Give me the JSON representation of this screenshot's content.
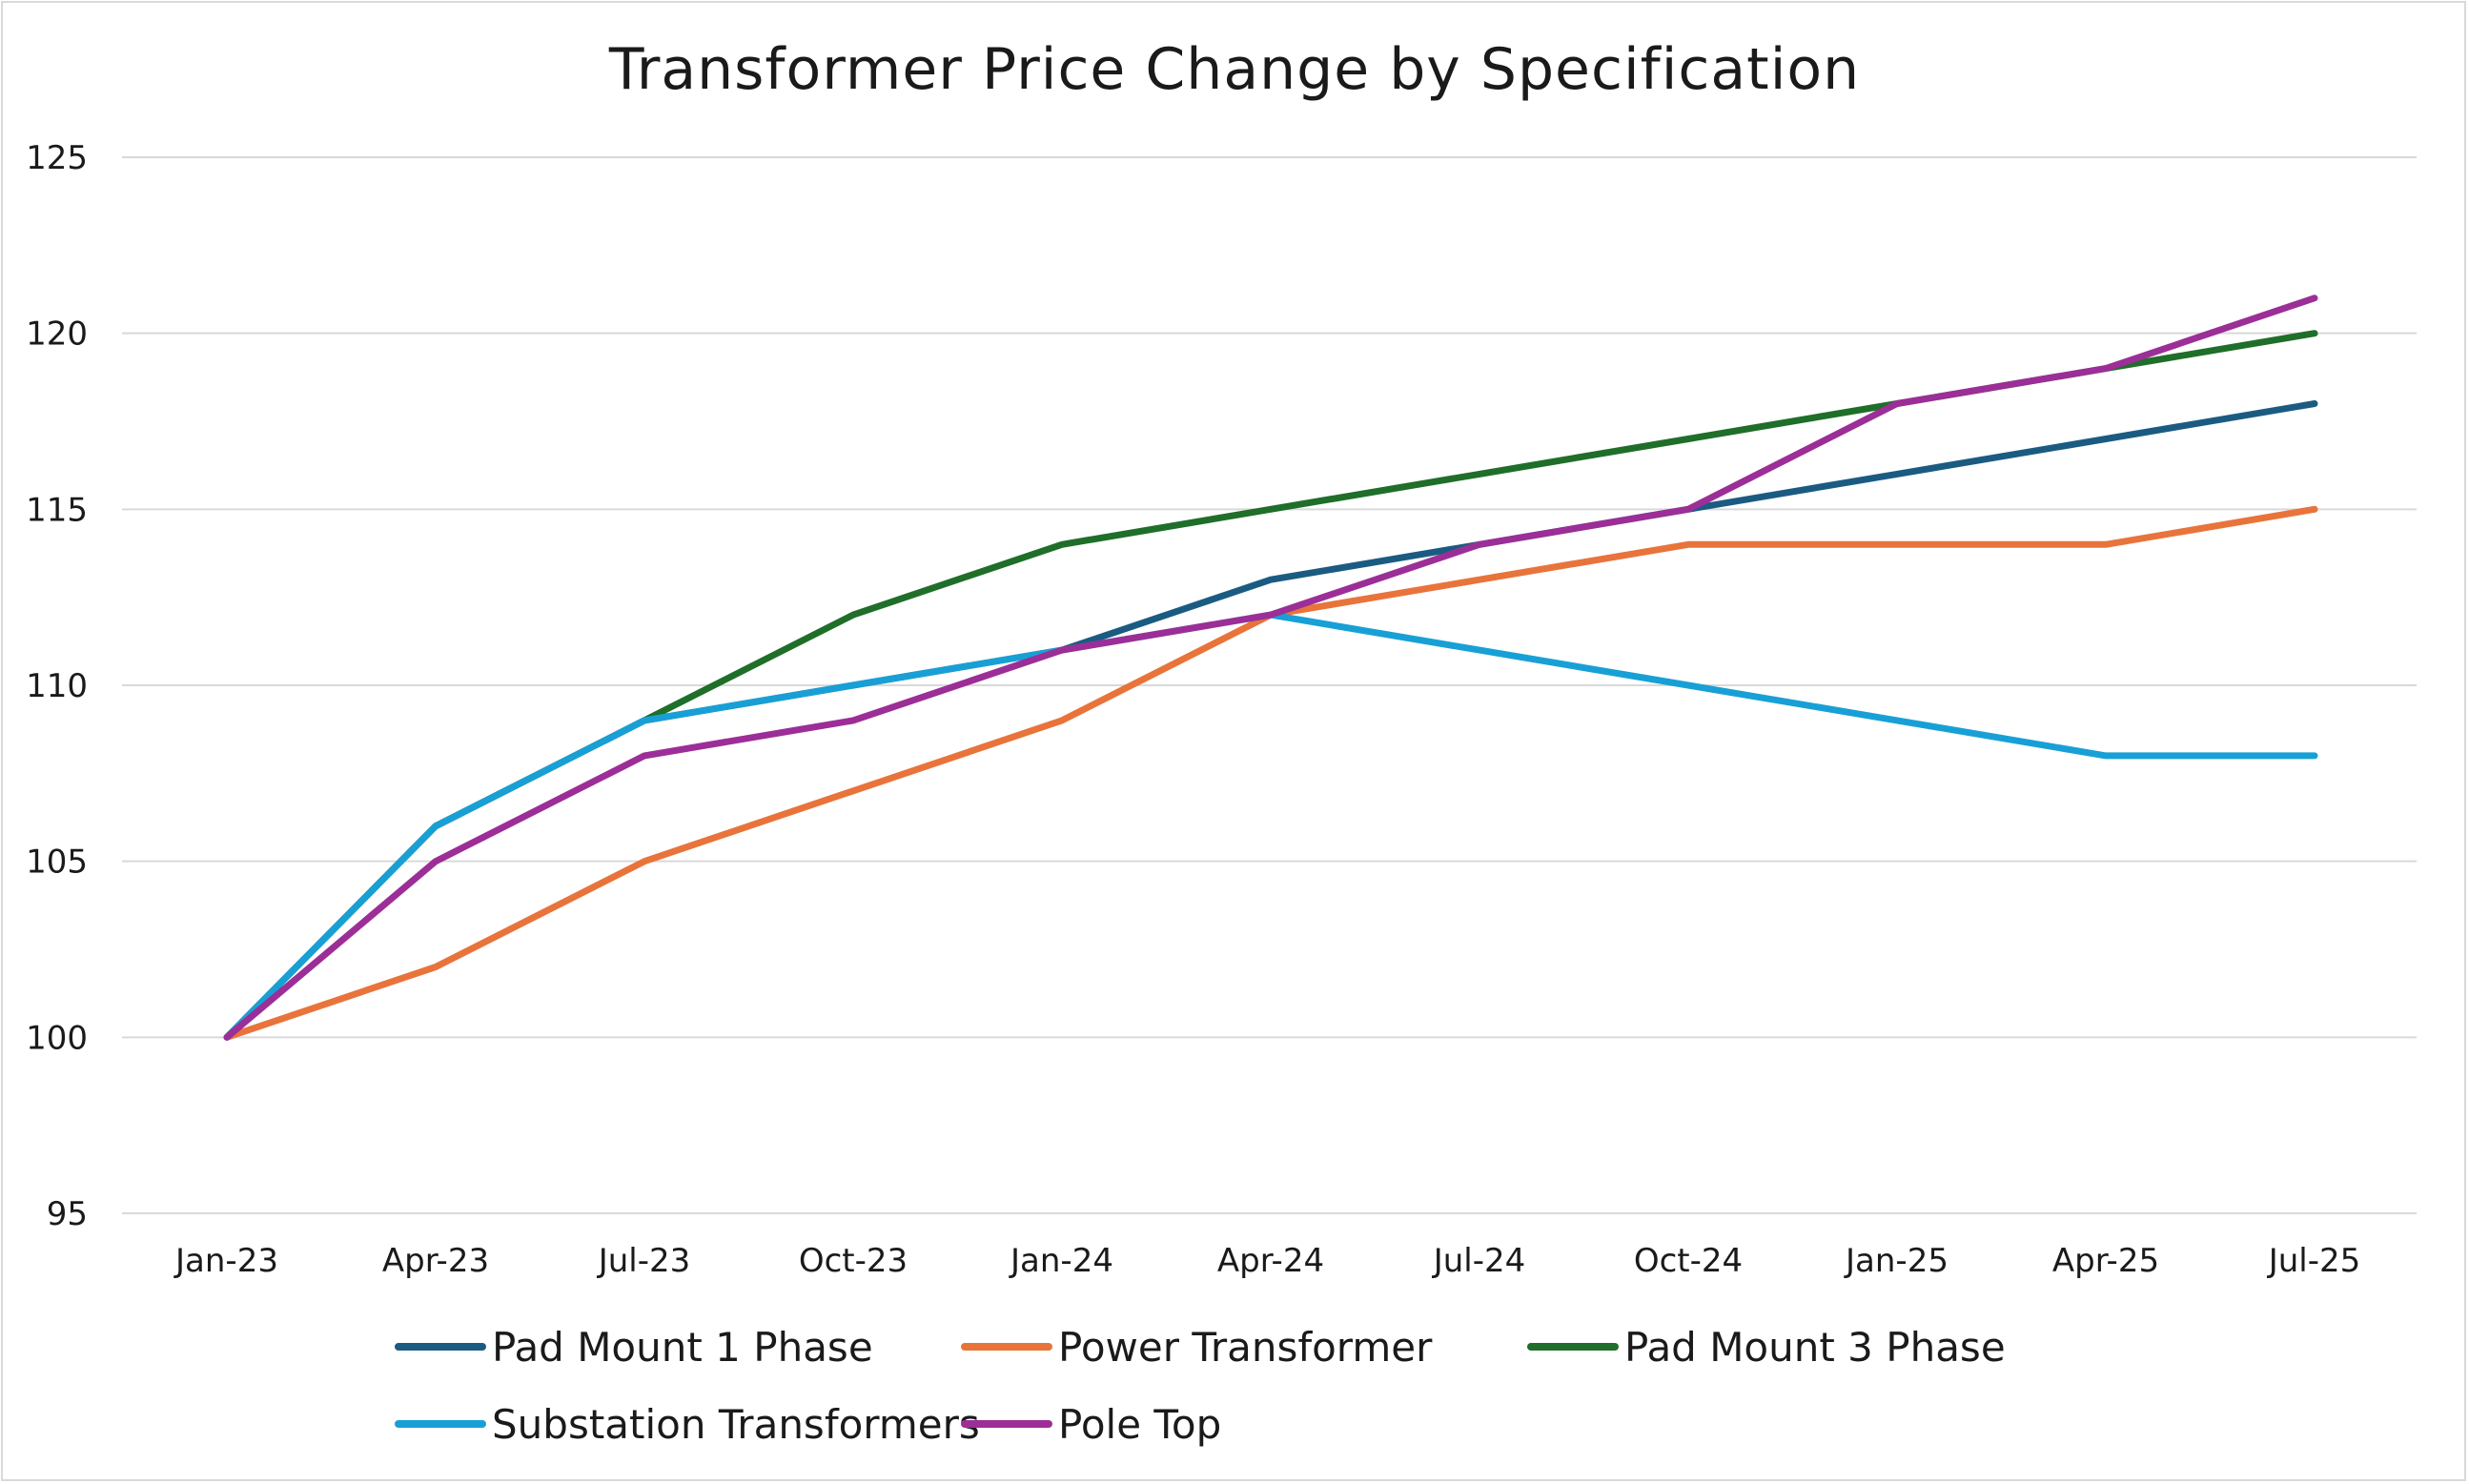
{
  "chart_data": {
    "type": "line",
    "title": "Transformer Price Change by Specification",
    "xlabel": "",
    "ylabel": "",
    "categories": [
      "Jan-23",
      "Apr-23",
      "Jul-23",
      "Oct-23",
      "Jan-24",
      "Apr-24",
      "Jul-24",
      "Oct-24",
      "Jan-25",
      "Apr-25",
      "Jul-25"
    ],
    "ylim": [
      95,
      125
    ],
    "yticks": [
      95,
      100,
      105,
      110,
      115,
      120,
      125
    ],
    "grid": true,
    "legend_position": "bottom",
    "series": [
      {
        "name": "Pad Mount 1 Phase",
        "color": "#1b5b82",
        "values": [
          100,
          106,
          109,
          110,
          111,
          113,
          114,
          115,
          116,
          117,
          118
        ]
      },
      {
        "name": "Power Transformer",
        "color": "#e8743b",
        "values": [
          100,
          102,
          105,
          107,
          109,
          112,
          113,
          114,
          114,
          114,
          115
        ]
      },
      {
        "name": "Pad Mount 3 Phase",
        "color": "#1f6e2a",
        "values": [
          100,
          106,
          109,
          112,
          114,
          115,
          116,
          117,
          118,
          119,
          120
        ]
      },
      {
        "name": "Substation Transformers",
        "color": "#18a0d6",
        "values": [
          100,
          106,
          109,
          110,
          111,
          112,
          111,
          110,
          109,
          108,
          108
        ]
      },
      {
        "name": "Pole Top",
        "color": "#9c2e97",
        "values": [
          100,
          105,
          108,
          109,
          111,
          112,
          114,
          115,
          118,
          119,
          121
        ]
      }
    ]
  }
}
